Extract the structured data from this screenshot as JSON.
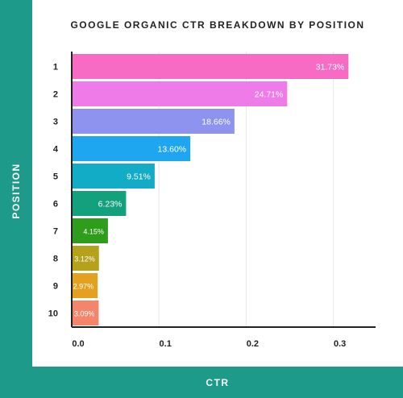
{
  "chart_data": {
    "type": "bar",
    "orientation": "horizontal",
    "title": "GOOGLE ORGANIC CTR BREAKDOWN BY POSITION",
    "xlabel": "CTR",
    "ylabel": "POSITION",
    "categories": [
      "1",
      "2",
      "3",
      "4",
      "5",
      "6",
      "7",
      "8",
      "9",
      "10"
    ],
    "values": [
      0.3173,
      0.2471,
      0.1866,
      0.136,
      0.0951,
      0.0623,
      0.0415,
      0.0312,
      0.0297,
      0.0309
    ],
    "value_labels": [
      "31.73%",
      "24.71%",
      "18.66%",
      "13.60%",
      "9.51%",
      "6.23%",
      "4.15%",
      "3.12%",
      "2.97%",
      "3.09%"
    ],
    "bar_colors": [
      "#f76bc5",
      "#ee7be8",
      "#8f93f0",
      "#1fa6f0",
      "#12acc6",
      "#13a07d",
      "#2f9d1c",
      "#b4a21b",
      "#e4a11f",
      "#f4846a"
    ],
    "xlim": [
      0,
      0.35
    ],
    "xticks": [
      0,
      0.1,
      0.2,
      0.3
    ],
    "xtick_labels": [
      "0.0",
      "0.1",
      "0.2",
      "0.3"
    ],
    "grid": true
  },
  "colors": {
    "frame": "#1e9a8a",
    "grid": "#e8e8ee",
    "axis": "#222222"
  }
}
